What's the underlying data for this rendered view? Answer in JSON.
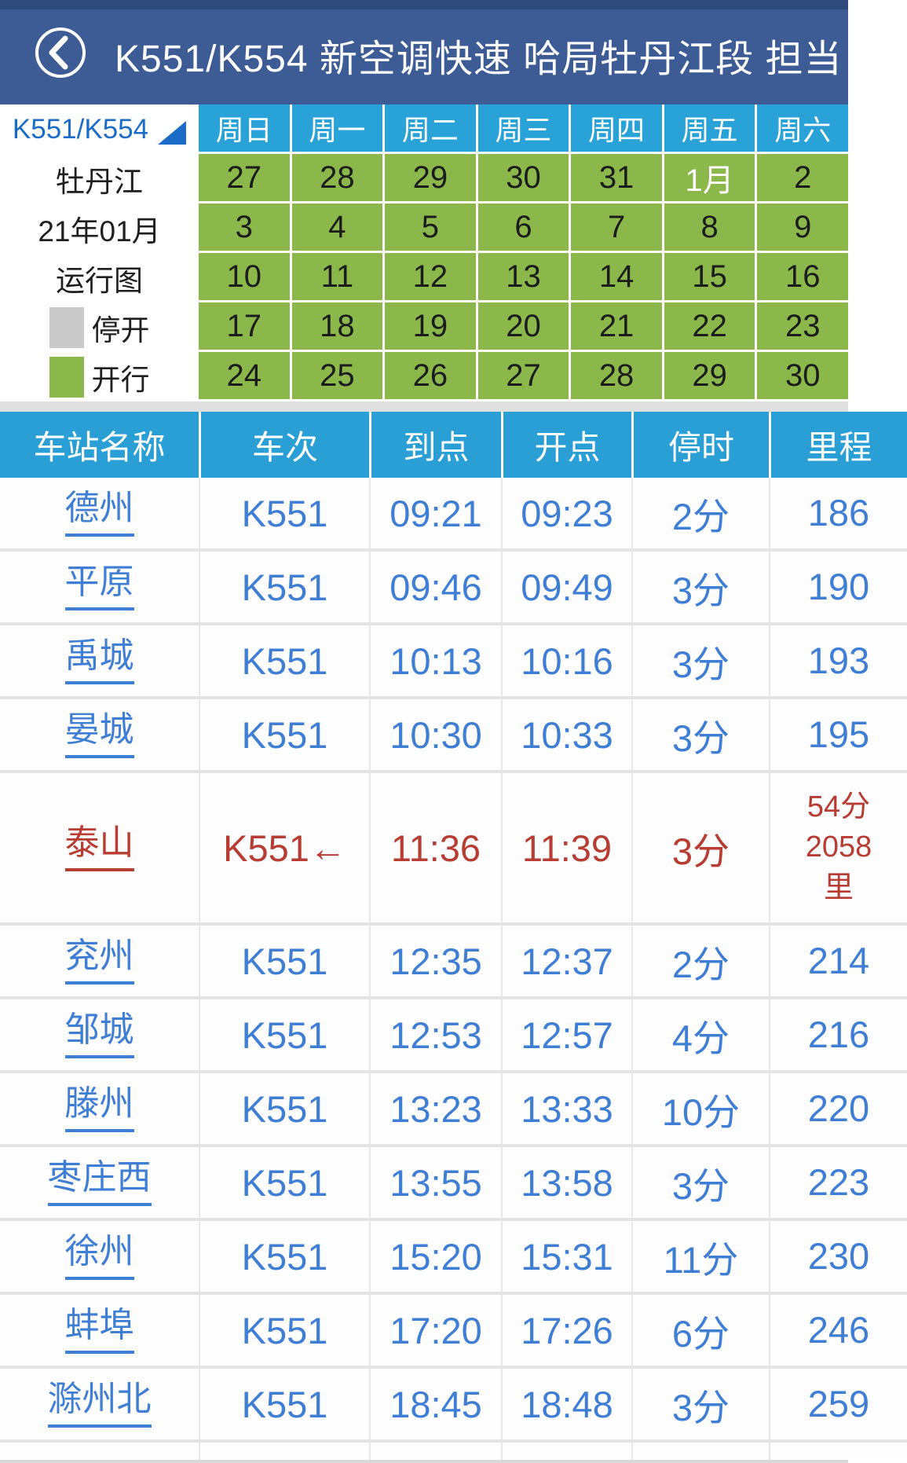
{
  "header": {
    "title": "K551/K554 新空调快速 哈局牡丹江段 担当"
  },
  "calendar": {
    "train_label": "K551/K554",
    "side_lines": [
      "牡丹江",
      "21年01月",
      "运行图"
    ],
    "legend": [
      {
        "label": "停开",
        "color": "#c9c9c9"
      },
      {
        "label": "开行",
        "color": "#8cb74b"
      }
    ],
    "weekdays": [
      "周日",
      "周一",
      "周二",
      "周三",
      "周四",
      "周五",
      "周六"
    ],
    "weeks": [
      [
        "27",
        "28",
        "29",
        "30",
        "31",
        "1月",
        "2"
      ],
      [
        "3",
        "4",
        "5",
        "6",
        "7",
        "8",
        "9"
      ],
      [
        "10",
        "11",
        "12",
        "13",
        "14",
        "15",
        "16"
      ],
      [
        "17",
        "18",
        "19",
        "20",
        "21",
        "22",
        "23"
      ],
      [
        "24",
        "25",
        "26",
        "27",
        "28",
        "29",
        "30"
      ]
    ],
    "white_text_dates": [
      "1月"
    ]
  },
  "timetable": {
    "columns": [
      "车站名称",
      "车次",
      "到点",
      "开点",
      "停时",
      "里程"
    ],
    "rows": [
      {
        "station": "德州",
        "train": "K551",
        "arrive": "09:21",
        "depart": "09:23",
        "stop": "2分",
        "mileage": "186",
        "highlight": false
      },
      {
        "station": "平原",
        "train": "K551",
        "arrive": "09:46",
        "depart": "09:49",
        "stop": "3分",
        "mileage": "190",
        "highlight": false
      },
      {
        "station": "禹城",
        "train": "K551",
        "arrive": "10:13",
        "depart": "10:16",
        "stop": "3分",
        "mileage": "193",
        "highlight": false
      },
      {
        "station": "晏城",
        "train": "K551",
        "arrive": "10:30",
        "depart": "10:33",
        "stop": "3分",
        "mileage": "195",
        "highlight": false
      },
      {
        "station": "泰山",
        "train": "K551←",
        "arrive": "11:36",
        "depart": "11:39",
        "stop": "3分",
        "mileage": "54分\n2058\n里",
        "highlight": true
      },
      {
        "station": "兖州",
        "train": "K551",
        "arrive": "12:35",
        "depart": "12:37",
        "stop": "2分",
        "mileage": "214",
        "highlight": false
      },
      {
        "station": "邹城",
        "train": "K551",
        "arrive": "12:53",
        "depart": "12:57",
        "stop": "4分",
        "mileage": "216",
        "highlight": false
      },
      {
        "station": "滕州",
        "train": "K551",
        "arrive": "13:23",
        "depart": "13:33",
        "stop": "10分",
        "mileage": "220",
        "highlight": false
      },
      {
        "station": "枣庄西",
        "train": "K551",
        "arrive": "13:55",
        "depart": "13:58",
        "stop": "3分",
        "mileage": "223",
        "highlight": false
      },
      {
        "station": "徐州",
        "train": "K551",
        "arrive": "15:20",
        "depart": "15:31",
        "stop": "11分",
        "mileage": "230",
        "highlight": false
      },
      {
        "station": "蚌埠",
        "train": "K551",
        "arrive": "17:20",
        "depart": "17:26",
        "stop": "6分",
        "mileage": "246",
        "highlight": false
      },
      {
        "station": "滁州北",
        "train": "K551",
        "arrive": "18:45",
        "depart": "18:48",
        "stop": "3分",
        "mileage": "259",
        "highlight": false
      }
    ]
  },
  "colors": {
    "topbar": "#3d5c96",
    "calendar_header": "#29a2d8",
    "calendar_run_day": "#8cb74b",
    "table_header": "#299fd6",
    "link_blue": "#3f7ed5",
    "highlight_red": "#b73c31",
    "brand_blue": "#1a6cc8",
    "stopped_gray": "#c9c9c9"
  }
}
